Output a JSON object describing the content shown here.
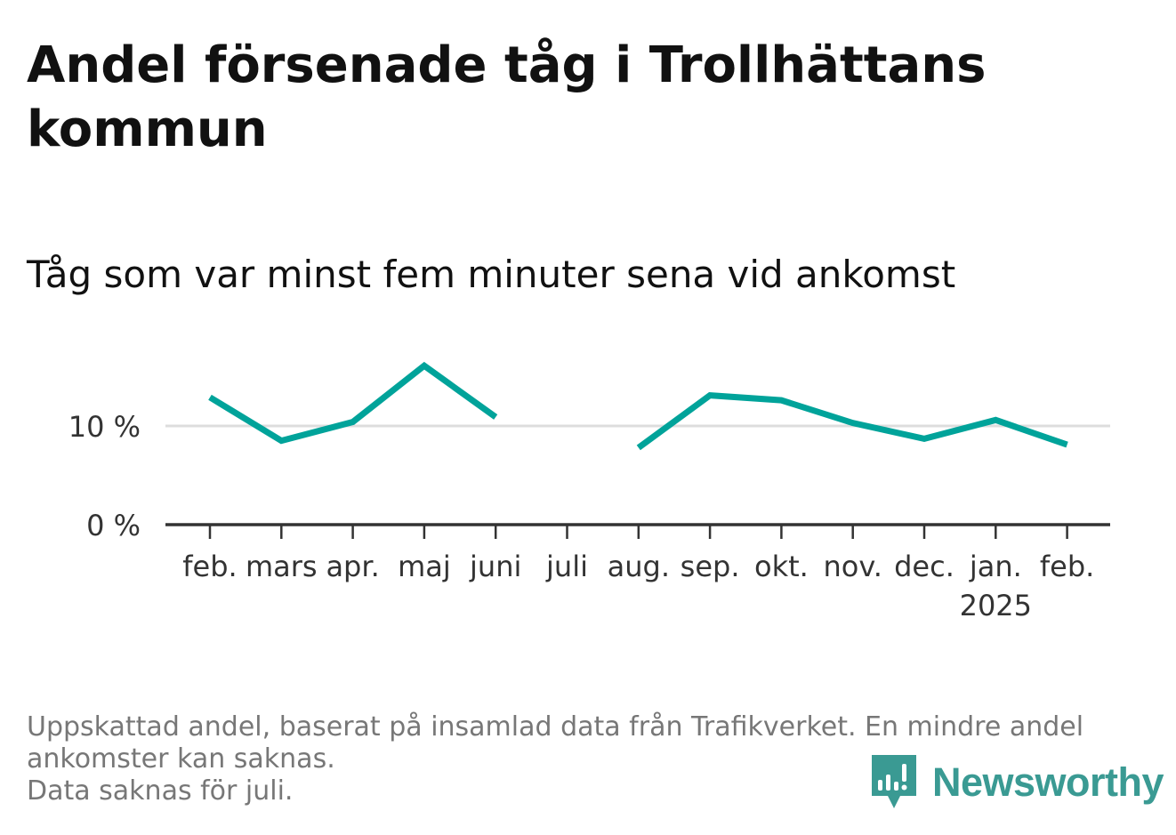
{
  "header": {
    "title": "Andel försenade tåg i Trollhättans kommun",
    "subtitle": "Tåg som var minst fem minuter sena vid ankomst"
  },
  "chart_data": {
    "type": "line",
    "categories": [
      "feb.",
      "mars",
      "apr.",
      "maj",
      "juni",
      "juli",
      "aug.",
      "sep.",
      "okt.",
      "nov.",
      "dec.",
      "jan.",
      "feb."
    ],
    "year_labels": [
      "",
      "",
      "",
      "",
      "",
      "",
      "",
      "",
      "",
      "",
      "",
      "2025",
      ""
    ],
    "series": [
      {
        "values": [
          12.9,
          8.5,
          10.4,
          16.1,
          10.9,
          null,
          7.8,
          13.1,
          12.6,
          10.3,
          8.7,
          10.6,
          8.1
        ],
        "color": "#00a39a"
      }
    ],
    "y_ticks": [
      0,
      10
    ],
    "y_tick_labels": [
      "0 %",
      "10 %"
    ],
    "ylim": [
      0,
      20
    ],
    "grid": true,
    "legend": "none"
  },
  "footer": {
    "note_line1": "Uppskattad andel, baserat på insamlad data från Trafikverket. En mindre andel ankomster kan saknas.",
    "note_line2": "Data saknas för juli."
  },
  "brand": {
    "name": "Newsworthy",
    "icon": "newsworthy-logo-icon",
    "color": "#3a9a93"
  }
}
